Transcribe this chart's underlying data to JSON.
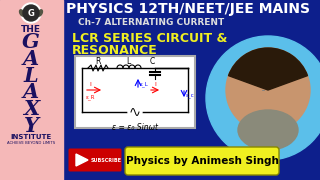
{
  "bg_main": "#0d1f8c",
  "bg_left_panel_top": "#f2b8b8",
  "bg_left_panel_bottom": "#f2b8b8",
  "title_text": "PHYSICS 12TH/NEET/JEE MAINS",
  "subtitle_text": "Ch-7 ALTERNATING CURRENT",
  "topic_line1": "LCR SERIES CIRCUIT &",
  "topic_line2": "RESONANCE",
  "bottom_banner_text": "Physics by Animesh Singh",
  "bottom_banner_bg": "#f0f020",
  "bottom_banner_color": "#000000",
  "left_letters": [
    "G",
    "A",
    "L",
    "A",
    "X",
    "Y"
  ],
  "subscribe_bg": "#cc0000",
  "circuit_label": "ε = ε₀ Sinωt",
  "title_color": "#ffffff",
  "subtitle_color": "#dddddd",
  "topic_color": "#f0f020",
  "left_text_color": "#1a1060",
  "left_bg": "#f5b8b8",
  "person_bg": "#5bbfea",
  "circuit_box_bg": "#e8e8e8"
}
